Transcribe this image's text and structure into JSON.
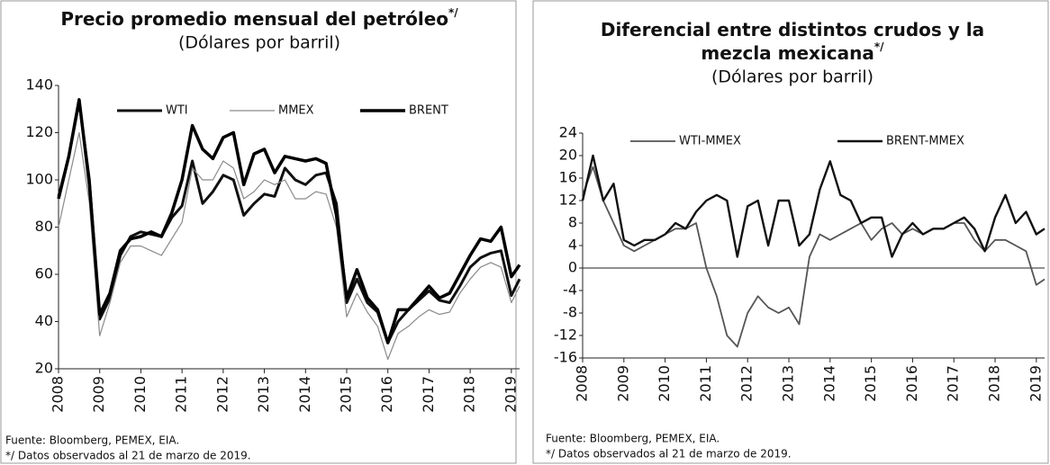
{
  "chart_data": [
    {
      "type": "line",
      "title": [
        "Precio promedio mensual del petróleo"
      ],
      "title_note": "*/",
      "subtitle": "(Dólares por barril)",
      "x": [
        2008,
        2008.25,
        2008.5,
        2008.75,
        2009,
        2009.25,
        2009.5,
        2009.75,
        2010,
        2010.25,
        2010.5,
        2010.75,
        2011,
        2011.25,
        2011.5,
        2011.75,
        2012,
        2012.25,
        2012.5,
        2012.75,
        2013,
        2013.25,
        2013.5,
        2013.75,
        2014,
        2014.25,
        2014.5,
        2014.75,
        2015,
        2015.25,
        2015.5,
        2015.75,
        2016,
        2016.25,
        2016.5,
        2016.75,
        2017,
        2017.25,
        2017.5,
        2017.75,
        2018,
        2018.25,
        2018.5,
        2018.75,
        2019,
        2019.2
      ],
      "series": [
        {
          "name": "WTI",
          "color": "#111111",
          "values": [
            93,
            110,
            133,
            100,
            41,
            50,
            68,
            76,
            78,
            77,
            76,
            84,
            89,
            108,
            90,
            95,
            102,
            100,
            85,
            90,
            94,
            93,
            105,
            100,
            98,
            102,
            103,
            90,
            48,
            58,
            48,
            44,
            31,
            40,
            45,
            49,
            53,
            49,
            48,
            55,
            63,
            67,
            69,
            70,
            51,
            58
          ]
        },
        {
          "name": "MMEX",
          "color": "#8a8a8a",
          "values": [
            80,
            100,
            120,
            90,
            34,
            48,
            65,
            72,
            72,
            70,
            68,
            75,
            82,
            105,
            100,
            100,
            108,
            105,
            92,
            95,
            100,
            98,
            100,
            92,
            92,
            95,
            94,
            80,
            42,
            52,
            44,
            38,
            24,
            35,
            38,
            42,
            45,
            43,
            44,
            52,
            58,
            63,
            65,
            63,
            48,
            55
          ]
        },
        {
          "name": "BRENT",
          "color": "#000000",
          "values": [
            92,
            110,
            134,
            98,
            43,
            52,
            70,
            75,
            76,
            78,
            76,
            86,
            100,
            123,
            113,
            109,
            118,
            120,
            98,
            111,
            113,
            103,
            110,
            109,
            108,
            109,
            107,
            85,
            50,
            62,
            50,
            45,
            31,
            45,
            45,
            50,
            55,
            50,
            52,
            60,
            68,
            75,
            74,
            80,
            59,
            64
          ]
        }
      ],
      "xlim": [
        2008,
        2019.2
      ],
      "xticks": [
        2008,
        2009,
        2010,
        2011,
        2012,
        2013,
        2014,
        2015,
        2016,
        2017,
        2018,
        2019
      ],
      "ylim": [
        20,
        140
      ],
      "yticks": [
        20,
        40,
        60,
        80,
        100,
        120,
        140
      ],
      "notes": [
        "Fuente: Bloomberg, PEMEX, EIA.",
        "*/ Datos observados al 21 de marzo de 2019."
      ]
    },
    {
      "type": "line",
      "title": [
        "Diferencial entre distintos crudos y la",
        "mezcla mexicana"
      ],
      "title_note": "*/",
      "subtitle": "(Dólares por barril)",
      "x": [
        2008,
        2008.25,
        2008.5,
        2008.75,
        2009,
        2009.25,
        2009.5,
        2009.75,
        2010,
        2010.25,
        2010.5,
        2010.75,
        2011,
        2011.25,
        2011.5,
        2011.75,
        2012,
        2012.25,
        2012.5,
        2012.75,
        2013,
        2013.25,
        2013.5,
        2013.75,
        2014,
        2014.25,
        2014.5,
        2014.75,
        2015,
        2015.25,
        2015.5,
        2015.75,
        2016,
        2016.25,
        2016.5,
        2016.75,
        2017,
        2017.25,
        2017.5,
        2017.75,
        2018,
        2018.25,
        2018.5,
        2018.75,
        2019,
        2019.2
      ],
      "series": [
        {
          "name": "WTI-MMEX",
          "color": "#555555",
          "values": [
            13,
            18,
            12,
            8,
            4,
            3,
            4,
            5,
            6,
            7,
            7,
            8,
            0,
            -5,
            -12,
            -14,
            -8,
            -5,
            -7,
            -8,
            -7,
            -10,
            2,
            6,
            5,
            6,
            7,
            8,
            5,
            7,
            8,
            6,
            7,
            6,
            7,
            7,
            8,
            8,
            5,
            3,
            5,
            5,
            4,
            3,
            -3,
            -2
          ]
        },
        {
          "name": "BRENT-MMEX",
          "color": "#111111",
          "values": [
            12,
            20,
            12,
            15,
            5,
            4,
            5,
            5,
            6,
            8,
            7,
            10,
            12,
            13,
            12,
            2,
            11,
            12,
            4,
            12,
            12,
            4,
            6,
            14,
            19,
            13,
            12,
            8,
            9,
            9,
            2,
            6,
            8,
            6,
            7,
            7,
            8,
            9,
            7,
            3,
            9,
            13,
            8,
            10,
            6,
            7
          ]
        }
      ],
      "xlim": [
        2008,
        2019.2
      ],
      "xticks": [
        2008,
        2009,
        2010,
        2011,
        2012,
        2013,
        2014,
        2015,
        2016,
        2017,
        2018,
        2019
      ],
      "ylim": [
        -16,
        24
      ],
      "yticks": [
        -16,
        -12,
        -8,
        -4,
        0,
        4,
        8,
        12,
        16,
        20,
        24
      ],
      "notes": [
        "Fuente: Bloomberg, PEMEX, EIA.",
        "*/ Datos observados al 21 de marzo de 2019."
      ]
    }
  ]
}
